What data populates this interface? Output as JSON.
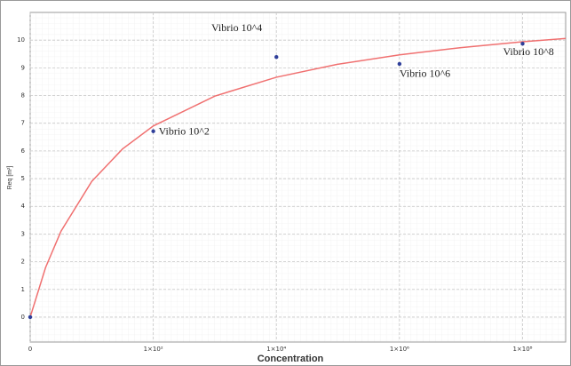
{
  "chart_data": {
    "type": "scatter",
    "x_label": "Concentration",
    "y_label": "Req [m²]",
    "xlim": [
      0,
      8.7
    ],
    "ylim": [
      -0.9,
      11
    ],
    "xticks": [
      0,
      {
        "value": 2,
        "label": "1×10²"
      },
      {
        "value": 4,
        "label": "1×10⁴"
      },
      {
        "value": 6,
        "label": "1×10⁶"
      },
      {
        "value": 8,
        "label": "1×10⁸"
      }
    ],
    "yticks": [
      0,
      1,
      2,
      3,
      4,
      5,
      6,
      7,
      8,
      9,
      10
    ],
    "grid": true,
    "series": [
      {
        "type": "scatter",
        "color": "#2f3f9a",
        "x": [
          0,
          2,
          4,
          6,
          8
        ],
        "values": [
          0,
          6.71,
          9.39,
          9.14,
          9.87
        ],
        "labels": [
          null,
          "Vibrio 10^2",
          "Vibrio 10^4",
          "Vibrio 10^6",
          "Vibrio 10^8"
        ]
      },
      {
        "type": "line",
        "color": "#f07070",
        "x": [
          0,
          0.25,
          0.5,
          1,
          1.5,
          2,
          3,
          4,
          5,
          6,
          7,
          8,
          8.7
        ],
        "values": [
          0,
          1.79,
          3.1,
          4.9,
          6.07,
          6.9,
          7.98,
          8.66,
          9.13,
          9.47,
          9.73,
          9.94,
          10.06
        ]
      }
    ]
  }
}
